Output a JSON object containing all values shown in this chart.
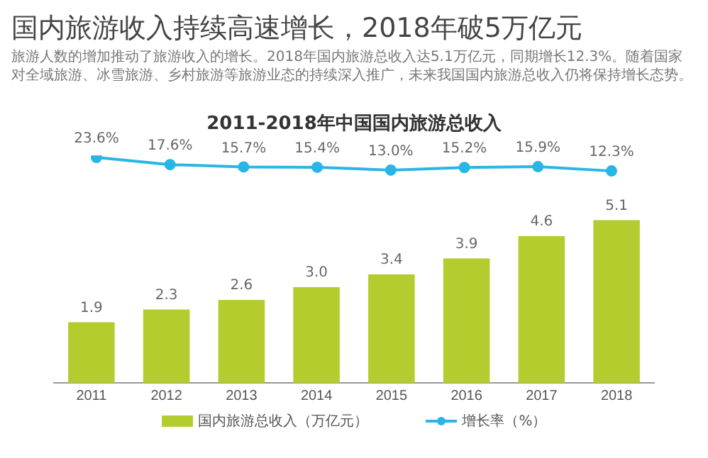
{
  "chart_data": [
    {
      "type": "line",
      "title": "2011-2018年中国国内旅游总收入",
      "annotations": [
        "国内旅游收入持续高速增长，2018年破5万亿元",
        "旅游人数的增加推动了旅游收入的增长。2018年国内旅游总收入达5.1万亿元，同期增长12.3%。随着国家对全域旅游、冰雪旅游、乡村旅游等旅游业态的持续深入推广，未来我国国内旅游总收入仍将保持增长态势。"
      ],
      "categories": [
        null,
        null,
        null,
        null,
        null,
        null,
        null,
        null
      ],
      "series": [
        {
          "name": "增长率（%）",
          "color": "#29b6e6",
          "values": [
            23.6,
            17.6,
            15.7,
            15.4,
            13.0,
            15.2,
            15.9,
            12.3
          ],
          "value_labels": [
            "23.6%",
            "17.6%",
            "15.7%",
            "15.4%",
            "13.0%",
            "15.2%",
            "15.9%",
            "12.3%"
          ]
        }
      ],
      "legend": "bottom",
      "grid": false,
      "marker": "circle",
      "tick_labels": false
    },
    {
      "type": "bar",
      "categories": [
        "2011",
        "2012",
        "2013",
        "2014",
        "2015",
        "2016",
        "2017",
        "2018"
      ],
      "series": [
        {
          "name": "国内旅游总收入（万亿元）",
          "type": "bar",
          "color": "#b5cc2e",
          "values": [
            1.9,
            2.3,
            2.6,
            3.0,
            3.4,
            3.9,
            4.6,
            5.1
          ],
          "value_labels": [
            "1.9",
            "2.3",
            "2.6",
            "3.0",
            "3.4",
            "3.9",
            "4.6",
            "5.1"
          ]
        }
      ],
      "legend": "bottom",
      "grid": false,
      "tick_labels": "x"
    }
  ]
}
